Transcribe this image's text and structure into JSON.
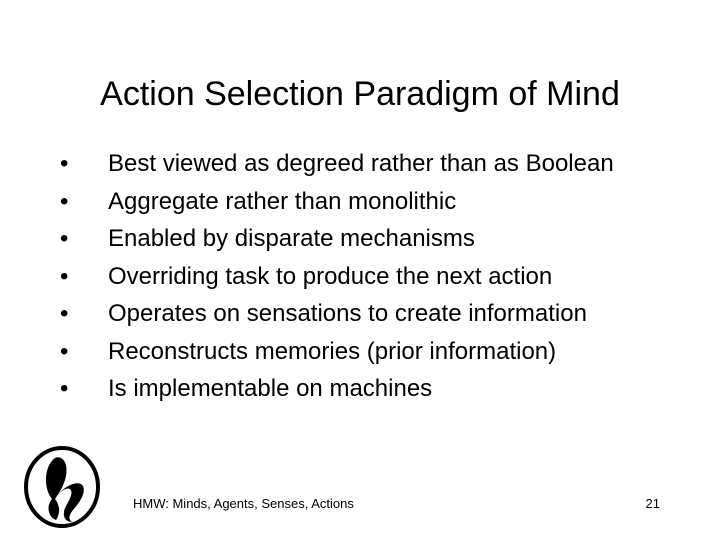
{
  "slide": {
    "title": "Action Selection Paradigm of Mind",
    "bullet_marker": "•",
    "bullets": [
      "Best viewed as degreed rather than as Boolean",
      "Aggregate rather than monolithic",
      "Enabled by disparate mechanisms",
      "Overriding task to produce the next action",
      "Operates on sensations to create information",
      "Reconstructs memories (prior information)",
      "Is implementable on machines"
    ]
  },
  "footer": {
    "text": "HMW: Minds, Agents, Senses, Actions",
    "page_number": "21",
    "logo_icon": "stylized-h-logo-icon"
  }
}
